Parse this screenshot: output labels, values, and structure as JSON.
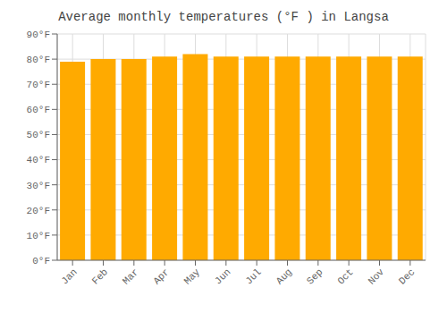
{
  "chart_data": {
    "type": "bar",
    "title": "Average monthly temperatures (°F ) in Langsa",
    "categories": [
      "Jan",
      "Feb",
      "Mar",
      "Apr",
      "May",
      "Jun",
      "Jul",
      "Aug",
      "Sep",
      "Oct",
      "Nov",
      "Dec"
    ],
    "values": [
      79,
      80,
      80,
      81,
      82,
      81,
      81,
      81,
      81,
      81,
      81,
      81
    ],
    "color": "#FFAA00",
    "ylim": [
      0,
      90
    ],
    "yticks": [
      {
        "value": 0,
        "label": "0°F"
      },
      {
        "value": 10,
        "label": "10°F"
      },
      {
        "value": 20,
        "label": "20°F"
      },
      {
        "value": 30,
        "label": "30°F"
      },
      {
        "value": 40,
        "label": "40°F"
      },
      {
        "value": 50,
        "label": "50°F"
      },
      {
        "value": 60,
        "label": "60°F"
      },
      {
        "value": 70,
        "label": "70°F"
      },
      {
        "value": 80,
        "label": "80°F"
      },
      {
        "value": 90,
        "label": "90°F"
      }
    ],
    "grid": true
  }
}
